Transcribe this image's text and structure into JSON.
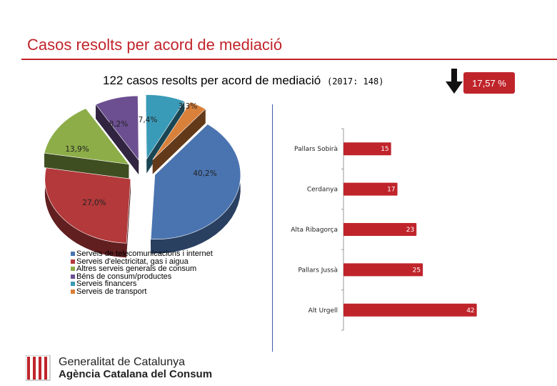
{
  "slide": {
    "title": "Casos resolts per acord de mediació",
    "subtitle": "122 casos resolts per acord de mediació",
    "subtitle_prev": "(2017: 148)",
    "kpi": "17,57 %",
    "kpi_color": "#c0242b",
    "arrow_icon": "down-arrow-icon"
  },
  "chart_data": [
    {
      "type": "pie",
      "title": "",
      "slices": [
        {
          "label": "Serveis de telecomunicacions i internet",
          "value": 40.2,
          "text": "40,2%",
          "color": "#4a74b0"
        },
        {
          "label": "Serveis d'electricitat, gas i aigua",
          "value": 27.0,
          "text": "27,0%",
          "color": "#b3393b"
        },
        {
          "label": "Altres serveis generals de consum",
          "value": 13.9,
          "text": "13,9%",
          "color": "#8cad48"
        },
        {
          "label": "Béns de consum/productes",
          "value": 8.2,
          "text": "8,2%",
          "color": "#6c4f91"
        },
        {
          "label": "Serveis financers",
          "value": 7.4,
          "text": "7,4%",
          "color": "#3a9bb8"
        },
        {
          "label": "Serveis de transport",
          "value": 3.3,
          "text": "3,3%",
          "color": "#d9803a"
        }
      ]
    },
    {
      "type": "bar",
      "orientation": "horizontal",
      "title": "",
      "categories": [
        "Pallars Sobirà",
        "Cerdanya",
        "Alta Ribagorça",
        "Pallars Jussà",
        "Alt Urgell"
      ],
      "values": [
        15,
        17,
        23,
        25,
        42
      ],
      "value_labels": [
        "15",
        "17",
        "23",
        "25",
        "42"
      ],
      "color": "#c0242b",
      "xlim": [
        0,
        45
      ],
      "xlabel": "",
      "ylabel": ""
    }
  ],
  "logo": {
    "line1": "Generalitat de Catalunya",
    "line2": "Agència Catalana del Consum"
  }
}
